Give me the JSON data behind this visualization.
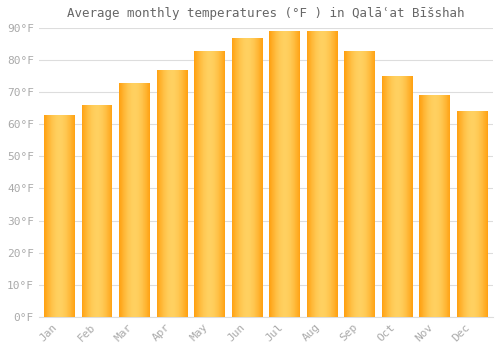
{
  "title": "Average monthly temperatures (°F ) in Qalāʿat Bīšshah",
  "months": [
    "Jan",
    "Feb",
    "Mar",
    "Apr",
    "May",
    "Jun",
    "Jul",
    "Aug",
    "Sep",
    "Oct",
    "Nov",
    "Dec"
  ],
  "values": [
    63,
    66,
    73,
    77,
    83,
    87,
    89,
    89,
    83,
    75,
    69,
    64
  ],
  "bar_color_center": "#FFD060",
  "bar_color_edge": "#FFA010",
  "background_color": "#FFFFFF",
  "grid_color": "#DDDDDD",
  "text_color": "#AAAAAA",
  "title_color": "#666666",
  "ylim": [
    0,
    90
  ],
  "yticks": [
    0,
    10,
    20,
    30,
    40,
    50,
    60,
    70,
    80,
    90
  ],
  "ytick_labels": [
    "0°F",
    "10°F",
    "20°F",
    "30°F",
    "40°F",
    "50°F",
    "60°F",
    "70°F",
    "80°F",
    "90°F"
  ],
  "title_fontsize": 9,
  "tick_fontsize": 8,
  "bar_width": 0.82,
  "gradient_steps": 100
}
